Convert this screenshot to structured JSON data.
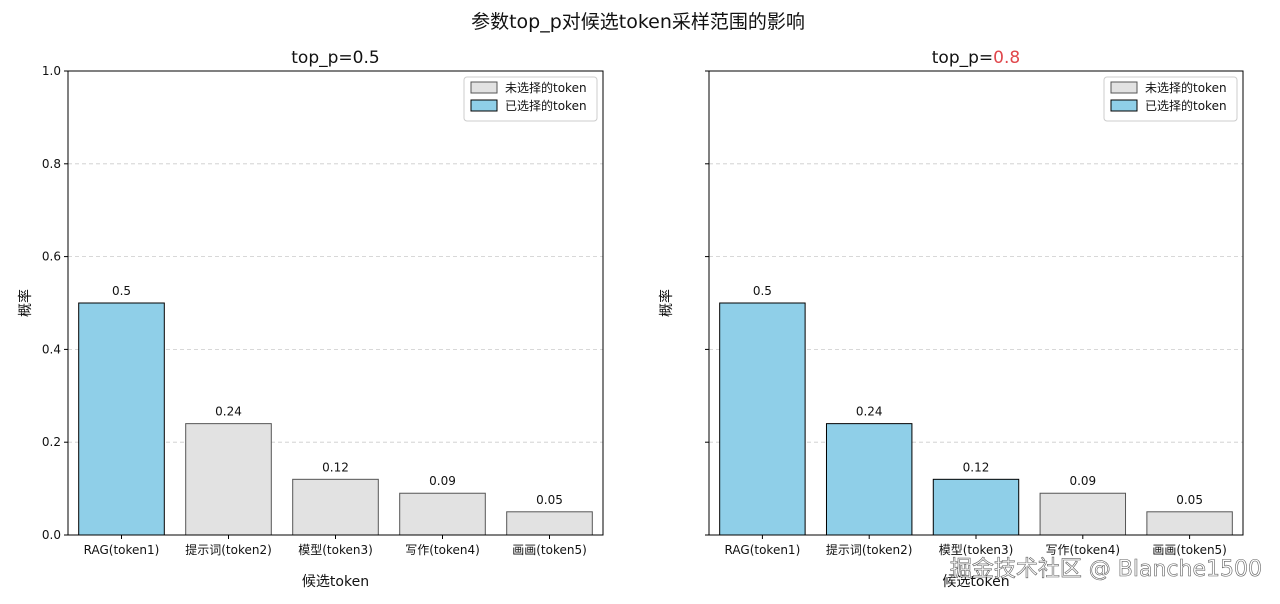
{
  "figure": {
    "suptitle": "参数top_p对候选token采样范围的影响",
    "watermark": "掘金技术社区 @ Blanche1500"
  },
  "colors": {
    "selected": "#8fcfe8",
    "unselected": "#e2e2e2",
    "grid": "#cccccc",
    "highlight": "#e0474c",
    "text": "#111111"
  },
  "chart_data": [
    {
      "type": "bar",
      "title_prefix": "top_p=",
      "title_value": "0.5",
      "title_value_highlight": false,
      "categories": [
        "RAG(token1)",
        "提示词(token2)",
        "模型(token3)",
        "写作(token4)",
        "画画(token5)"
      ],
      "values": [
        0.5,
        0.24,
        0.12,
        0.09,
        0.05
      ],
      "data_labels": [
        "0.5",
        "0.24",
        "0.12",
        "0.09",
        "0.05"
      ],
      "selected": [
        true,
        false,
        false,
        false,
        false
      ],
      "xlabel": "候选token",
      "ylabel": "概率",
      "ylim": [
        0,
        1.0
      ],
      "yticks": [
        "0.0",
        "0.2",
        "0.4",
        "0.6",
        "0.8",
        "1.0"
      ],
      "show_ytick_labels": true,
      "grid": "y-dashed",
      "legend": {
        "placement": "top-right",
        "entries": [
          {
            "label": "未选择的token",
            "kind": "unselected"
          },
          {
            "label": "已选择的token",
            "kind": "selected"
          }
        ]
      }
    },
    {
      "type": "bar",
      "title_prefix": "top_p=",
      "title_value": "0.8",
      "title_value_highlight": true,
      "categories": [
        "RAG(token1)",
        "提示词(token2)",
        "模型(token3)",
        "写作(token4)",
        "画画(token5)"
      ],
      "values": [
        0.5,
        0.24,
        0.12,
        0.09,
        0.05
      ],
      "data_labels": [
        "0.5",
        "0.24",
        "0.12",
        "0.09",
        "0.05"
      ],
      "selected": [
        true,
        true,
        true,
        false,
        false
      ],
      "xlabel": "候选token",
      "ylabel": "概率",
      "ylim": [
        0,
        1.0
      ],
      "yticks": [
        "0.0",
        "0.2",
        "0.4",
        "0.6",
        "0.8",
        "1.0"
      ],
      "show_ytick_labels": false,
      "grid": "y-dashed",
      "legend": {
        "placement": "top-right",
        "entries": [
          {
            "label": "未选择的token",
            "kind": "unselected"
          },
          {
            "label": "已选择的token",
            "kind": "selected"
          }
        ]
      }
    }
  ]
}
